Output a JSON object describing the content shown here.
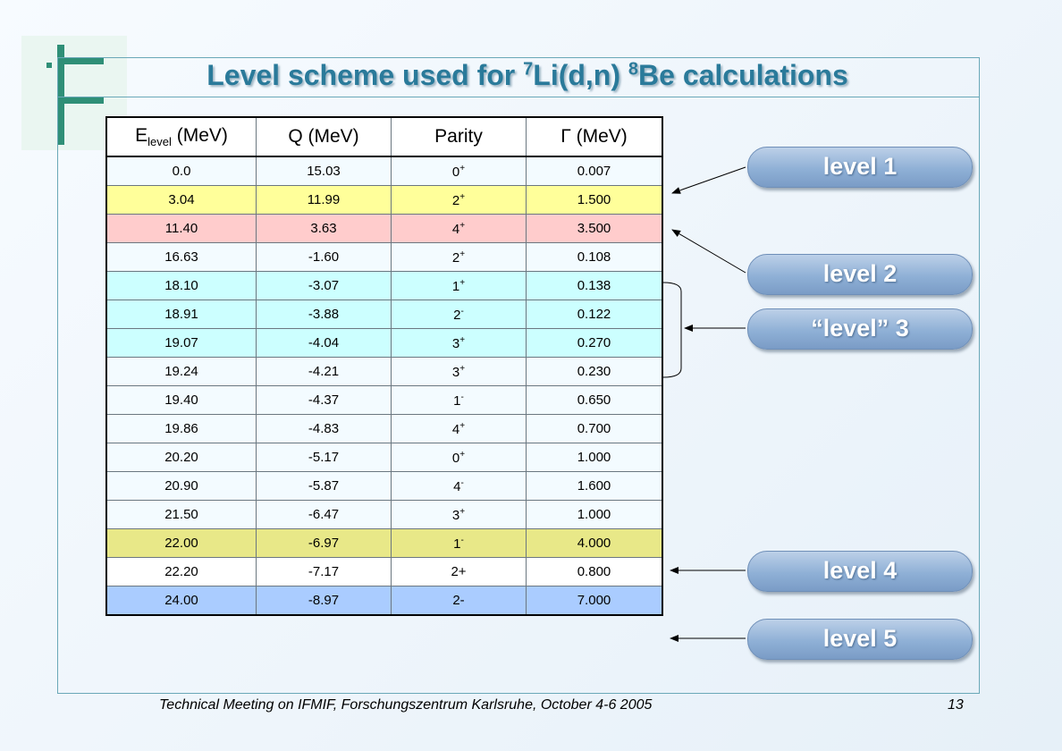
{
  "title": {
    "prefix": "Level scheme used for ",
    "li_mass": "7",
    "middle": "Li(d,n) ",
    "be_mass": "8",
    "suffix": "Be calculations"
  },
  "table": {
    "headers": {
      "elevel_main": "E",
      "elevel_sub": "level",
      "elevel_unit": " (MeV)",
      "q": "Q (MeV)",
      "parity": "Parity",
      "gamma_symbol": "Γ",
      "gamma_unit": " (MeV)"
    },
    "rows": [
      {
        "e": "0.0",
        "q": "15.03",
        "p": "0",
        "ps": "+",
        "g": "0.007",
        "bg": "#f3fbff"
      },
      {
        "e": "3.04",
        "q": "11.99",
        "p": "2",
        "ps": "+",
        "g": "1.500",
        "bg": "#ffff9a"
      },
      {
        "e": "11.40",
        "q": "3.63",
        "p": "4",
        "ps": "+",
        "g": "3.500",
        "bg": "#ffcccc"
      },
      {
        "e": "16.63",
        "q": "-1.60",
        "p": "2",
        "ps": "+",
        "g": "0.108",
        "bg": "#f3fbff"
      },
      {
        "e": "18.10",
        "q": "-3.07",
        "p": "1",
        "ps": "+",
        "g": "0.138",
        "bg": "#ccffff"
      },
      {
        "e": "18.91",
        "q": "-3.88",
        "p": "2",
        "ps": "-",
        "g": "0.122",
        "bg": "#ccffff"
      },
      {
        "e": "19.07",
        "q": "-4.04",
        "p": "3",
        "ps": "+",
        "g": "0.270",
        "bg": "#ccffff"
      },
      {
        "e": "19.24",
        "q": "-4.21",
        "p": "3",
        "ps": "+",
        "g": "0.230",
        "bg": "#f3fbff"
      },
      {
        "e": "19.40",
        "q": "-4.37",
        "p": "1",
        "ps": "-",
        "g": "0.650",
        "bg": "#f3fbff"
      },
      {
        "e": "19.86",
        "q": "-4.83",
        "p": "4",
        "ps": "+",
        "g": "0.700",
        "bg": "#f3fbff"
      },
      {
        "e": "20.20",
        "q": "-5.17",
        "p": "0",
        "ps": "+",
        "g": "1.000",
        "bg": "#f3fbff"
      },
      {
        "e": "20.90",
        "q": "-5.87",
        "p": "4",
        "ps": "-",
        "g": "1.600",
        "bg": "#f3fbff"
      },
      {
        "e": "21.50",
        "q": "-6.47",
        "p": "3",
        "ps": "+",
        "g": "1.000",
        "bg": "#f3fbff"
      },
      {
        "e": "22.00",
        "q": "-6.97",
        "p": "1",
        "ps": "-",
        "g": "4.000",
        "bg": "#e8e888"
      },
      {
        "e": "22.20",
        "q": "-7.17",
        "p": "2+",
        "ps": "",
        "g": "0.800",
        "bg": "#ffffff"
      },
      {
        "e": "24.00",
        "q": "-8.97",
        "p": "2-",
        "ps": "",
        "g": "7.000",
        "bg": "#aaccff"
      }
    ]
  },
  "labels": {
    "level1": "level 1",
    "level2": "level 2",
    "level3": "“level” 3",
    "level4": "level 4",
    "level5": "level 5"
  },
  "footer": {
    "text": "Technical Meeting on IFMIF, Forschungszentrum Karlsruhe, October 4-6 2005",
    "page": "13"
  },
  "colors": {
    "title": "#2a7a9a",
    "frame": "#6aa8b8",
    "pill": "#8fb0d6"
  }
}
